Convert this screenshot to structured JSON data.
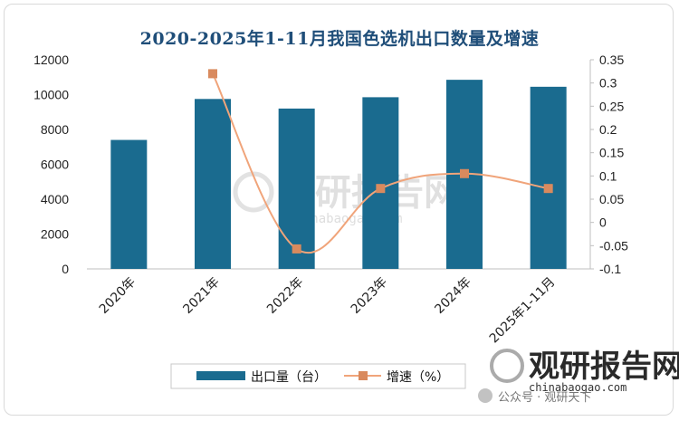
{
  "chart_data": {
    "type": "bar",
    "title": "2020-2025年1-11月我国色选机出口数量及增速",
    "categories": [
      "2020年",
      "2021年",
      "2022年",
      "2023年",
      "2024年",
      "2025年1-11月"
    ],
    "series": [
      {
        "name": "出口量（台）",
        "type": "bar",
        "axis": "left",
        "color": "#1a6b8f",
        "values": [
          7400,
          9750,
          9200,
          9850,
          10850,
          10450
        ]
      },
      {
        "name": "增速（%）",
        "type": "line",
        "axis": "right",
        "color": "#f0a47a",
        "values": [
          null,
          0.32,
          -0.057,
          0.073,
          0.105,
          0.073
        ]
      }
    ],
    "y_left": {
      "ylim": [
        0,
        12000
      ],
      "ticks": [
        "0",
        "2000",
        "4000",
        "6000",
        "8000",
        "10000",
        "12000"
      ]
    },
    "y_right": {
      "ylim": [
        -0.1,
        0.35
      ],
      "ticks": [
        "-0.1",
        "-0.05",
        "0",
        "0.05",
        "0.1",
        "0.15",
        "0.2",
        "0.25",
        "0.3",
        "0.35"
      ]
    },
    "grid": false,
    "legend": "bottom"
  },
  "watermark": {
    "center_name": "观研报告网",
    "center_url": "chinabaogao.com",
    "corner_name": "观研报告网",
    "corner_url": "chinabaogao.com",
    "wechat": "公众号 · 观研天下"
  }
}
